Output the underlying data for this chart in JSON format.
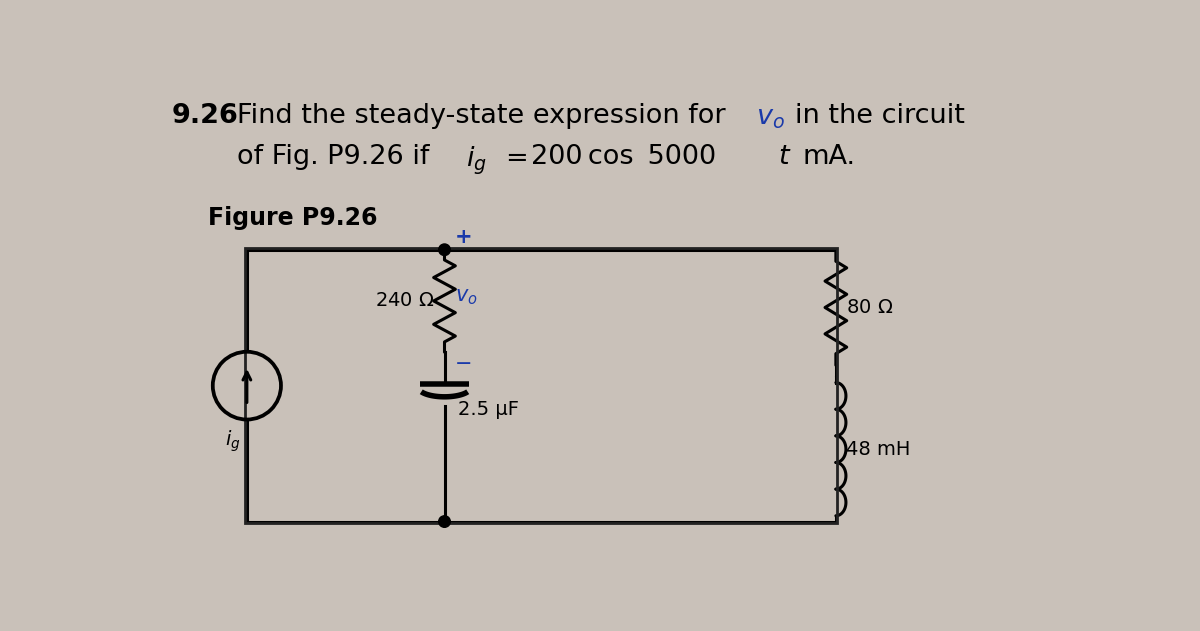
{
  "bg_color": "#c9c1b9",
  "text_color": "#000000",
  "blue_color": "#1a3aaa",
  "wire_color": "#000000",
  "r1_label": "240 Ω",
  "r2_label": "80 Ω",
  "cap_label": "2.5 μF",
  "ind_label": "48 mH",
  "figure_label": "Figure P9.26"
}
